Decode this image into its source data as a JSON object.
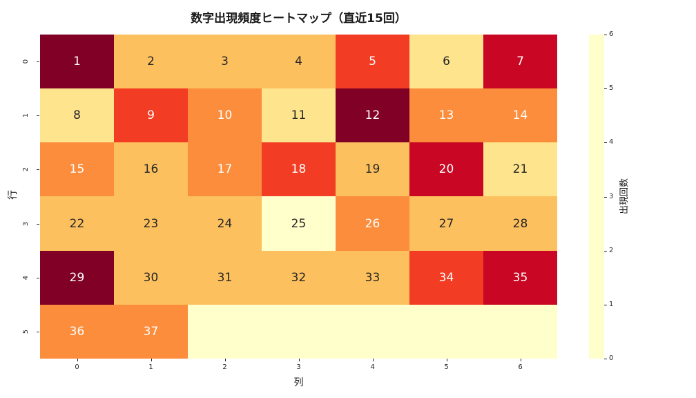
{
  "title": "数字出現頻度ヒートマップ（直近15回）",
  "chart_data": {
    "type": "heatmap",
    "title": "数字出現頻度ヒートマップ（直近15回）",
    "xlabel": "列",
    "ylabel": "行",
    "colorbar_label": "出現回数",
    "x_ticks": [
      "0",
      "1",
      "2",
      "3",
      "4",
      "5",
      "6"
    ],
    "y_ticks": [
      "0",
      "1",
      "2",
      "3",
      "4",
      "5"
    ],
    "colorbar_ticks": [
      "0",
      "1",
      "2",
      "3",
      "4",
      "5",
      "6"
    ],
    "vmin": 0,
    "vmax": 6,
    "colormap_name": "YlOrRd",
    "cell_labels": [
      [
        "1",
        "2",
        "3",
        "4",
        "5",
        "6",
        "7"
      ],
      [
        "8",
        "9",
        "10",
        "11",
        "12",
        "13",
        "14"
      ],
      [
        "15",
        "16",
        "17",
        "18",
        "19",
        "20",
        "21"
      ],
      [
        "22",
        "23",
        "24",
        "25",
        "26",
        "27",
        "28"
      ],
      [
        "29",
        "30",
        "31",
        "32",
        "33",
        "34",
        "35"
      ],
      [
        "36",
        "37",
        "",
        "",
        "",
        "",
        ""
      ]
    ],
    "values": [
      [
        6,
        2,
        2,
        2,
        4,
        1,
        5
      ],
      [
        1,
        4,
        3,
        1,
        6,
        3,
        3
      ],
      [
        3,
        2,
        3,
        4,
        2,
        5,
        1
      ],
      [
        2,
        2,
        2,
        0,
        3,
        2,
        2
      ],
      [
        6,
        2,
        2,
        2,
        2,
        4,
        5
      ],
      [
        3,
        3,
        0,
        0,
        0,
        0,
        0
      ]
    ]
  },
  "colors": {
    "value_to_hex": {
      "0": "#ffffcc",
      "1": "#fee48d",
      "2": "#fdc05e",
      "3": "#fb8d3d",
      "4": "#f23d24",
      "5": "#c90623",
      "6": "#800026"
    },
    "text_dark": "#262626",
    "text_light": "#ffffff",
    "white_text_threshold": 3
  }
}
